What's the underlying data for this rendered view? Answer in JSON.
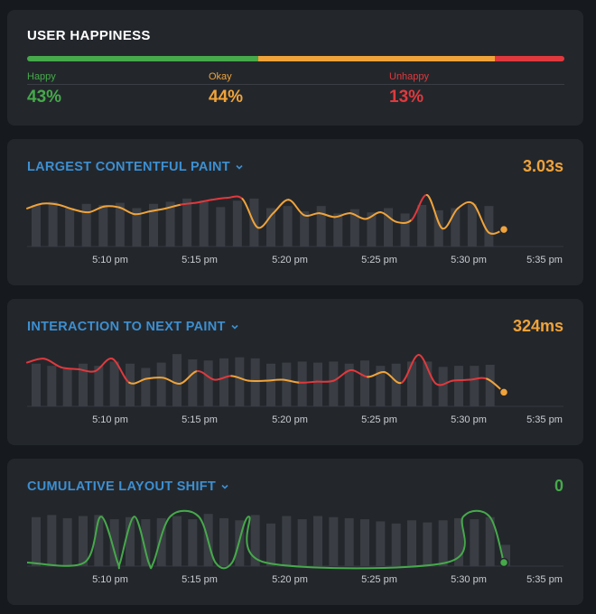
{
  "colors": {
    "good": "#46a94a",
    "warn": "#f0a33a",
    "bad": "#e0393d",
    "accent": "#3d8fd1",
    "bar": "#3a3e44"
  },
  "happiness": {
    "title": "USER HAPPINESS",
    "segments": [
      {
        "label": "Happy",
        "value": "43%",
        "fraction": 0.43,
        "color": "#46a94a"
      },
      {
        "label": "Okay",
        "value": "44%",
        "fraction": 0.44,
        "color": "#f0a33a"
      },
      {
        "label": "Unhappy",
        "value": "13%",
        "fraction": 0.13,
        "color": "#e0393d"
      }
    ]
  },
  "x_ticks": [
    "5:10 pm",
    "5:15 pm",
    "5:20 pm",
    "5:25 pm",
    "5:30 pm",
    "5:35 pm"
  ],
  "metrics": [
    {
      "id": "lcp",
      "title": "LARGEST CONTENTFUL PAINT",
      "value": "3.03s",
      "value_color": "#f0a33a",
      "chevron_icon": "chevron-down-icon",
      "chart_data": {
        "type": "line",
        "x_ticks": [
          "5:10 pm",
          "5:15 pm",
          "5:20 pm",
          "5:25 pm",
          "5:30 pm",
          "5:35 pm"
        ],
        "bars": [
          0.78,
          0.84,
          0.72,
          0.8,
          0.78,
          0.82,
          0.72,
          0.8,
          0.84,
          0.9,
          0.86,
          0.74,
          0.86,
          0.9,
          0.72,
          0.76,
          0.66,
          0.76,
          0.62,
          0.7,
          0.64,
          0.72,
          0.62,
          0.78,
          0.68,
          0.72,
          0.8,
          0.76,
          0.0
        ],
        "line": [
          0.72,
          0.82,
          0.8,
          0.7,
          0.64,
          0.76,
          0.74,
          0.6,
          0.66,
          0.72,
          0.8,
          0.84,
          0.9,
          0.94,
          0.92,
          0.32,
          0.62,
          0.9,
          0.58,
          0.62,
          0.54,
          0.62,
          0.5,
          0.64,
          0.44,
          0.48,
          1.0,
          0.3,
          0.72,
          0.82,
          0.22,
          0.28
        ],
        "line_colors": [
          "#f0a33a",
          "#f0a33a",
          "#f0a33a",
          "#f0a33a",
          "#f0a33a",
          "#f0a33a",
          "#f0a33a",
          "#f0a33a",
          "#f0a33a",
          "#f0a33a",
          "#e0393d",
          "#e0393d",
          "#e0393d",
          "#e0393d",
          "#f0a33a",
          "#f0a33a",
          "#f0a33a",
          "#f0a33a",
          "#f0a33a",
          "#f0a33a",
          "#f0a33a",
          "#f0a33a",
          "#f0a33a",
          "#f0a33a",
          "#f0a33a",
          "#e0393d",
          "#f0a33a",
          "#f0a33a",
          "#f0a33a",
          "#f0a33a",
          "#f0a33a"
        ],
        "end_color": "#f0a33a"
      }
    },
    {
      "id": "inp",
      "title": "INTERACTION TO NEXT PAINT",
      "value": "324ms",
      "value_color": "#f0a33a",
      "chevron_icon": "chevron-down-icon",
      "chart_data": {
        "type": "line",
        "x_ticks": [
          "5:10 pm",
          "5:15 pm",
          "5:20 pm",
          "5:25 pm",
          "5:30 pm",
          "5:35 pm"
        ],
        "bars": [
          0.8,
          0.76,
          0.7,
          0.8,
          0.76,
          0.84,
          0.8,
          0.72,
          0.82,
          0.98,
          0.88,
          0.86,
          0.9,
          0.92,
          0.9,
          0.8,
          0.82,
          0.84,
          0.82,
          0.84,
          0.8,
          0.86,
          0.76,
          0.8,
          0.84,
          0.84,
          0.74,
          0.76,
          0.76,
          0.78,
          0.0
        ],
        "line": [
          0.84,
          0.92,
          0.74,
          0.7,
          0.66,
          0.92,
          0.42,
          0.5,
          0.52,
          0.4,
          0.66,
          0.48,
          0.56,
          0.46,
          0.46,
          0.48,
          0.42,
          0.44,
          0.46,
          0.68,
          0.54,
          0.64,
          0.42,
          1.0,
          0.4,
          0.46,
          0.48,
          0.5,
          0.22
        ],
        "line_colors": [
          "#e0393d",
          "#e0393d",
          "#e0393d",
          "#e0393d",
          "#e0393d",
          "#e0393d",
          "#f0a33a",
          "#f0a33a",
          "#f0a33a",
          "#f0a33a",
          "#e0393d",
          "#e0393d",
          "#f0a33a",
          "#f0a33a",
          "#f0a33a",
          "#f0a33a",
          "#e0393d",
          "#e0393d",
          "#e0393d",
          "#e0393d",
          "#f0a33a",
          "#f0a33a",
          "#e0393d",
          "#e0393d",
          "#e0393d",
          "#e0393d",
          "#e0393d",
          "#f0a33a"
        ],
        "end_color": "#f0a33a"
      }
    },
    {
      "id": "cls",
      "title": "CUMULATIVE LAYOUT SHIFT",
      "value": "0",
      "value_color": "#46a94a",
      "chevron_icon": "chevron-down-icon",
      "chart_data": {
        "type": "line",
        "x_ticks": [
          "5:10 pm",
          "5:15 pm",
          "5:20 pm",
          "5:25 pm",
          "5:30 pm",
          "5:35 pm"
        ],
        "bars": [
          0.92,
          0.96,
          0.9,
          0.94,
          0.96,
          0.88,
          0.92,
          0.88,
          0.9,
          0.94,
          0.88,
          0.98,
          0.9,
          0.86,
          0.96,
          0.8,
          0.94,
          0.88,
          0.94,
          0.92,
          0.9,
          0.88,
          0.84,
          0.8,
          0.86,
          0.82,
          0.86,
          0.9,
          0.88,
          0.92,
          0.4
        ],
        "line_shape": [
          {
            "t": 0.0,
            "v": 0.0
          },
          {
            "t": 0.12,
            "v": 0.0
          },
          {
            "t": 0.155,
            "v": 0.96
          },
          {
            "t": 0.19,
            "v": 0.0
          },
          {
            "t": 0.195,
            "v": 0.0
          },
          {
            "t": 0.225,
            "v": 0.96
          },
          {
            "t": 0.255,
            "v": 0.0
          },
          {
            "t": 0.265,
            "v": 0.0
          },
          {
            "t": 0.3,
            "v": 0.96
          },
          {
            "t": 0.36,
            "v": 0.96
          },
          {
            "t": 0.395,
            "v": 0.0
          },
          {
            "t": 0.43,
            "v": 0.0
          },
          {
            "t": 0.465,
            "v": 0.96
          },
          {
            "t": 0.5,
            "v": 0.0
          },
          {
            "t": 0.88,
            "v": 0.0
          },
          {
            "t": 0.915,
            "v": 0.96
          },
          {
            "t": 0.97,
            "v": 0.96
          },
          {
            "t": 1.0,
            "v": 0.0
          }
        ],
        "line_color": "#46a94a",
        "end_color": "#46a94a"
      }
    }
  ]
}
